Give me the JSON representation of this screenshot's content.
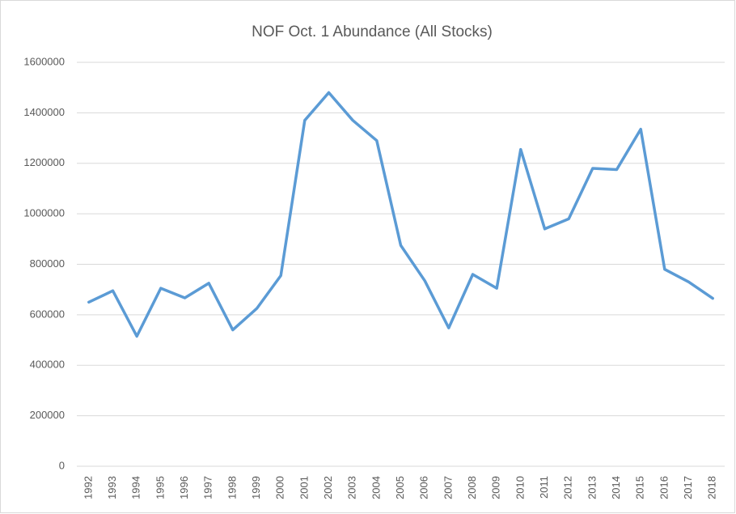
{
  "chart_data": {
    "type": "line",
    "title": "NOF Oct. 1 Abundance (All Stocks)",
    "categories": [
      "1992",
      "1993",
      "1994",
      "1995",
      "1996",
      "1997",
      "1998",
      "1999",
      "2000",
      "2001",
      "2002",
      "2003",
      "2004",
      "2005",
      "2006",
      "2007",
      "2008",
      "2009",
      "2010",
      "2011",
      "2012",
      "2013",
      "2014",
      "2015",
      "2016",
      "2017",
      "2018"
    ],
    "values": [
      650000,
      695000,
      515000,
      705000,
      667000,
      725000,
      540000,
      625000,
      755000,
      1370000,
      1480000,
      1370000,
      1290000,
      875000,
      735000,
      548000,
      760000,
      705000,
      1255000,
      940000,
      980000,
      1180000,
      1175000,
      1335000,
      780000,
      730000,
      665000
    ],
    "color": "#5b9bd5",
    "ylim": [
      0,
      1600000
    ],
    "yticks": [
      0,
      200000,
      400000,
      600000,
      800000,
      1000000,
      1200000,
      1400000,
      1600000
    ],
    "grid": true
  }
}
